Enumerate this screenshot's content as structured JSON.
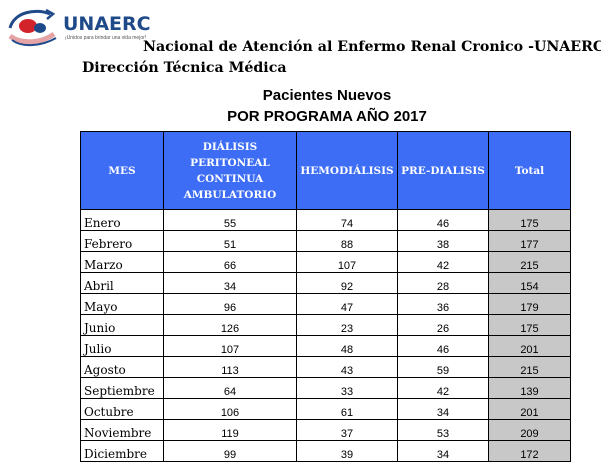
{
  "header": {
    "logo_name": "UNAERC",
    "logo_tagline": "¡Unidos para brindar una vida mejor!",
    "org_line1": "Nacional de Atención al Enfermo Renal Cronico -UNAERC-",
    "org_line2": "Dirección Técnica Médica"
  },
  "report": {
    "title": "Pacientes Nuevos",
    "subtitle": "POR PROGRAMA AÑO 2017"
  },
  "table": {
    "headers": {
      "mes": "MES",
      "dpca": "DIÁLISIS PERITONEAL CONTINUA AMBULATORIO",
      "hemo": "HEMODIÁLISIS",
      "pre": "PRE-DIALISIS",
      "total": "Total"
    },
    "rows": [
      {
        "mes": "Enero",
        "dpca": "55",
        "hemo": "74",
        "pre": "46",
        "total": "175"
      },
      {
        "mes": "Febrero",
        "dpca": "51",
        "hemo": "88",
        "pre": "38",
        "total": "177"
      },
      {
        "mes": "Marzo",
        "dpca": "66",
        "hemo": "107",
        "pre": "42",
        "total": "215"
      },
      {
        "mes": "Abril",
        "dpca": "34",
        "hemo": "92",
        "pre": "28",
        "total": "154"
      },
      {
        "mes": "Mayo",
        "dpca": "96",
        "hemo": "47",
        "pre": "36",
        "total": "179"
      },
      {
        "mes": "Junio",
        "dpca": "126",
        "hemo": "23",
        "pre": "26",
        "total": "175"
      },
      {
        "mes": "Julio",
        "dpca": "107",
        "hemo": "48",
        "pre": "46",
        "total": "201"
      },
      {
        "mes": "Agosto",
        "dpca": "113",
        "hemo": "43",
        "pre": "59",
        "total": "215"
      },
      {
        "mes": "Septiembre",
        "dpca": "64",
        "hemo": "33",
        "pre": "42",
        "total": "139"
      },
      {
        "mes": "Octubre",
        "dpca": "106",
        "hemo": "61",
        "pre": "34",
        "total": "201"
      },
      {
        "mes": "Noviembre",
        "dpca": "119",
        "hemo": "37",
        "pre": "53",
        "total": "209"
      },
      {
        "mes": "Diciembre",
        "dpca": "99",
        "hemo": "39",
        "pre": "34",
        "total": "172"
      }
    ]
  },
  "colors": {
    "header_bg": "#3d6cf5",
    "total_bg": "#c8c8c8",
    "logo_blue": "#1f4a8a",
    "logo_red": "#d2232a"
  }
}
